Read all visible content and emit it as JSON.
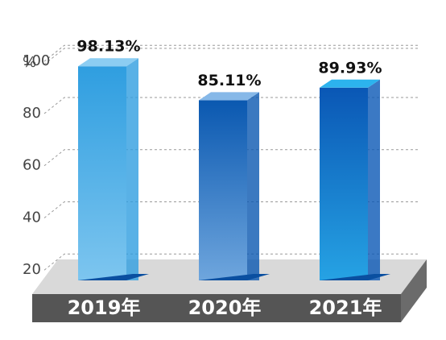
{
  "chart_data": {
    "type": "bar3d",
    "y_label": "%",
    "categories": [
      "2019年",
      "2020年",
      "2021年"
    ],
    "values": [
      98.13,
      85.11,
      89.93
    ],
    "value_labels": [
      "98.13%",
      "85.11%",
      "89.93%"
    ],
    "colors": [
      [
        "#2f9ee0",
        "#8ccdf2"
      ],
      [
        "#0a58b0",
        "#86b8e8"
      ],
      [
        "#0a57b5",
        "#2cb3ee"
      ]
    ],
    "ylim": [
      0,
      105
    ],
    "yticks": [
      20,
      40,
      60,
      80,
      100
    ],
    "grid": true
  }
}
